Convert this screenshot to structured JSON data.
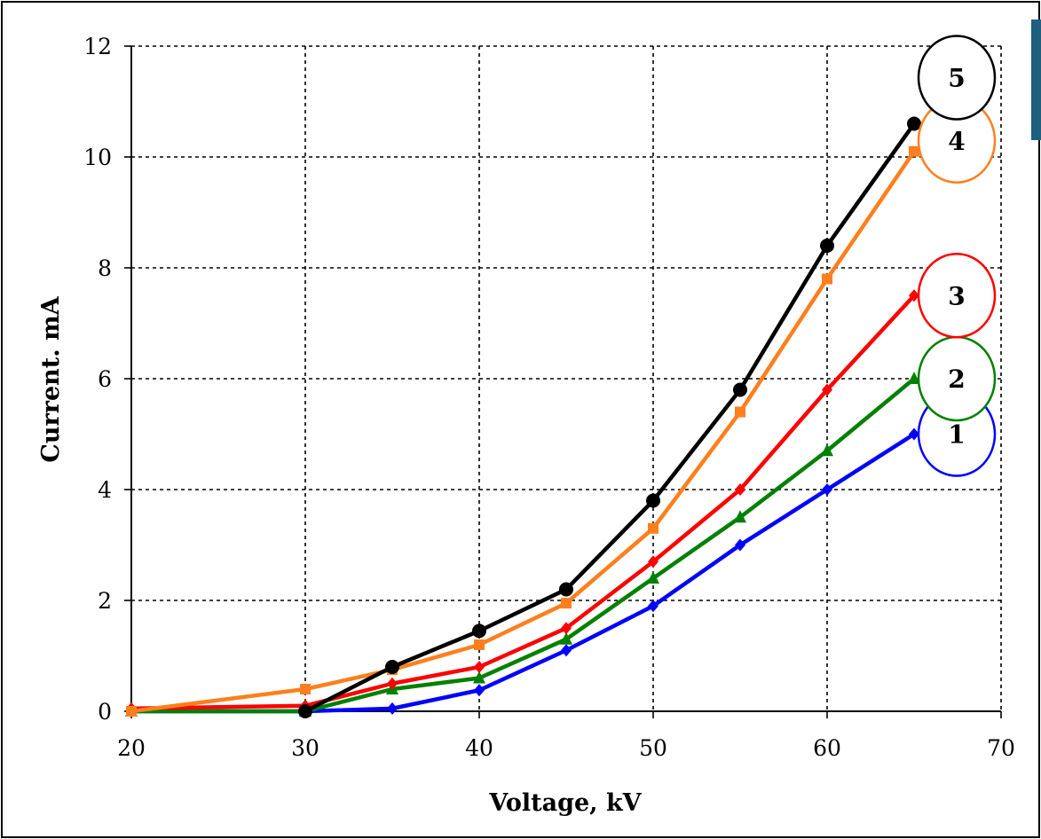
{
  "chart_data": {
    "type": "line",
    "title": "",
    "xlabel": "Voltage, kV",
    "ylabel": "Current. mA",
    "xlim": [
      20,
      70
    ],
    "ylim": [
      0,
      12
    ],
    "xticks": [
      "20",
      "30",
      "40",
      "50",
      "60",
      "70"
    ],
    "yticks": [
      "0",
      "2",
      "4",
      "6",
      "8",
      "10",
      "12"
    ],
    "grid": true,
    "legend": "right, numbered circles",
    "series": [
      {
        "name": "1",
        "color": "#0000ff",
        "marker": "diamond",
        "x": [
          20,
          30,
          35,
          40,
          45,
          50,
          55,
          60,
          65
        ],
        "y": [
          0,
          0,
          0.05,
          0.38,
          1.1,
          1.9,
          3.0,
          4.0,
          5.0
        ]
      },
      {
        "name": "2",
        "color": "#008000",
        "marker": "triangle",
        "x": [
          20,
          30,
          35,
          40,
          45,
          50,
          55,
          60,
          65
        ],
        "y": [
          0,
          0,
          0.4,
          0.6,
          1.3,
          2.4,
          3.5,
          4.7,
          6.0
        ]
      },
      {
        "name": "3",
        "color": "#ff0000",
        "marker": "diamond",
        "x": [
          20,
          30,
          35,
          40,
          45,
          50,
          55,
          60,
          65
        ],
        "y": [
          0.05,
          0.1,
          0.5,
          0.8,
          1.5,
          2.7,
          4.0,
          5.8,
          7.5
        ]
      },
      {
        "name": "4",
        "color": "#ff7f1e",
        "marker": "square",
        "x": [
          20,
          30,
          35,
          40,
          45,
          50,
          55,
          60,
          65
        ],
        "y": [
          0,
          0.4,
          0.75,
          1.2,
          1.95,
          3.3,
          5.4,
          7.8,
          10.1
        ]
      },
      {
        "name": "5",
        "color": "#000000",
        "marker": "circle",
        "x": [
          30,
          35,
          40,
          45,
          50,
          55,
          60,
          65
        ],
        "y": [
          0,
          0.8,
          1.45,
          2.2,
          3.8,
          5.8,
          8.4,
          10.6
        ]
      }
    ]
  }
}
